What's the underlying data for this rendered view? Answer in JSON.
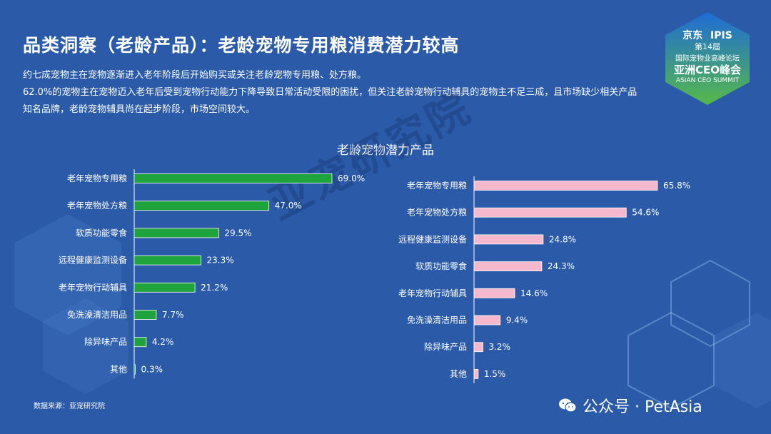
{
  "page": {
    "title": "品类洞察（老龄产品）：老龄宠物专用粮消费潜力较高",
    "desc_lines": [
      "约七成宠物主在宠物逐渐进入老年阶段后开始购买或关注老龄宠物专用粮、处方粮。",
      "62.0%的宠物主在宠物迈入老年后受到宠物行动能力下降导致日常活动受限的困扰，但关注老龄宠物行动辅具的宠物主不足三成，且市场缺少相关产品",
      "知名品牌，老龄宠物辅具尚在起步阶段，市场空间较大。"
    ],
    "chart_heading": "老龄宠物潜力产品",
    "watermark": "亚宠研究院",
    "source": "数据来源：亚宠研究院",
    "wechat": "公众号 · PetAsia",
    "logo": {
      "brand_left": "京东",
      "brand_right": "IPIS",
      "edition": "第14届",
      "line1": "国际宠物业高峰论坛",
      "line2": "亚洲CEO峰会",
      "line3": "ASIAN CEO SUMMIT"
    },
    "colors": {
      "green": "#1fa43d",
      "pink": "#f6b8cc",
      "background": "#2a5aa8"
    }
  },
  "chart_data": [
    {
      "type": "bar",
      "orientation": "horizontal",
      "categories": [
        "老年宠物专用粮",
        "老年宠物处方粮",
        "软质功能零食",
        "远程健康监测设备",
        "老年宠物行动辅具",
        "免洗澡清洁用品",
        "除异味产品",
        "其他"
      ],
      "values": [
        69.0,
        47.0,
        29.5,
        23.3,
        21.2,
        7.7,
        4.2,
        0.3
      ],
      "labels": [
        "69.0%",
        "47.0%",
        "29.5%",
        "23.3%",
        "21.2%",
        "7.7%",
        "4.2%",
        "0.3%"
      ],
      "color": "#1fa43d",
      "xlim": [
        0,
        69.0
      ]
    },
    {
      "type": "bar",
      "orientation": "horizontal",
      "categories": [
        "老年宠物专用粮",
        "老年宠物处方粮",
        "远程健康监测设备",
        "软质功能零食",
        "老年宠物行动辅具",
        "免洗澡清洁用品",
        "除异味产品",
        "其他"
      ],
      "values": [
        65.8,
        54.6,
        24.8,
        24.3,
        14.6,
        9.4,
        3.2,
        1.5
      ],
      "labels": [
        "65.8%",
        "54.6%",
        "24.8%",
        "24.3%",
        "14.6%",
        "9.4%",
        "3.2%",
        "1.5%"
      ],
      "color": "#f6b8cc",
      "xlim": [
        0,
        65.8
      ]
    }
  ]
}
